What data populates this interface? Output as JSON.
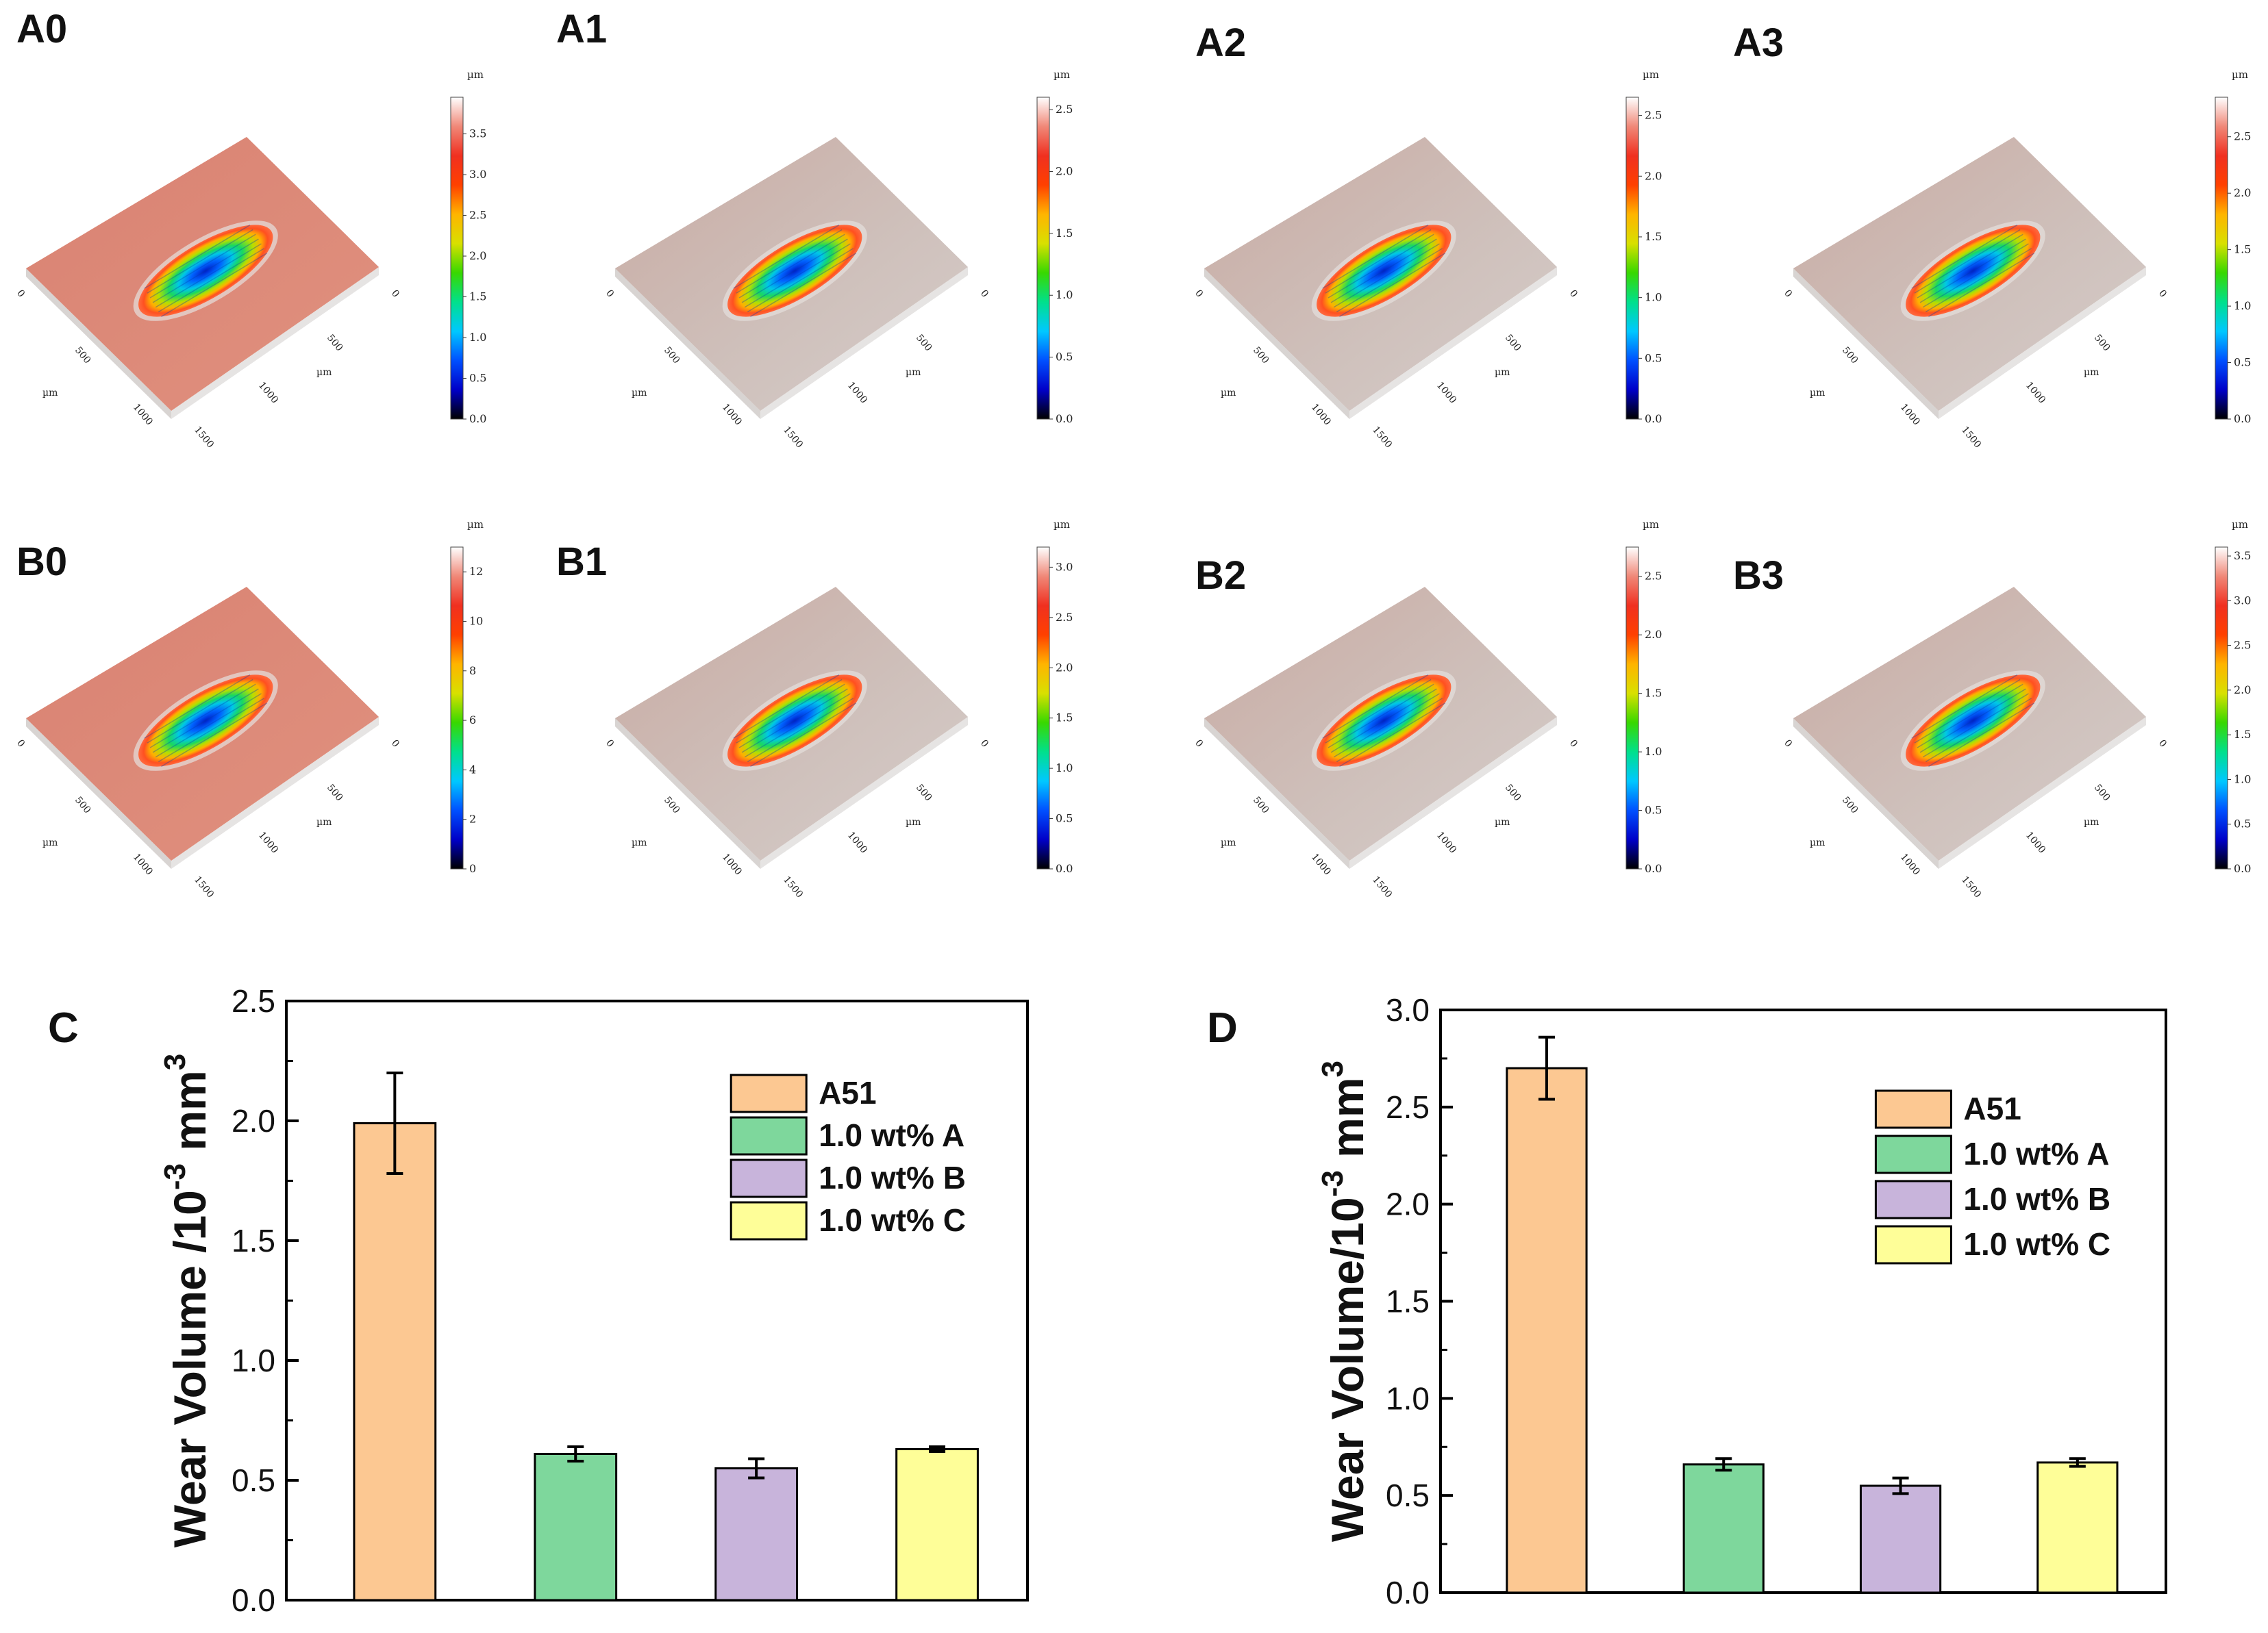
{
  "colors": {
    "surface": "#d98a78",
    "surface_grey": "#c9b7b1",
    "colorbar": [
      "#000000",
      "#0000c8",
      "#0050ff",
      "#00c8ff",
      "#00e08c",
      "#38d800",
      "#d8e000",
      "#ffb400",
      "#ff4000",
      "#f03020",
      "#f08878",
      "#ffffff"
    ],
    "A51": "#fcc892",
    "wtA": "#7ed79c",
    "wtB": "#c8b4db",
    "wtC": "#fefe98"
  },
  "panels3d": [
    {
      "label": "A0",
      "unit": "µm",
      "ticks": [
        "0.0",
        "0.5",
        "1.0",
        "1.5",
        "2.0",
        "2.5",
        "3.0",
        "3.5"
      ],
      "max": 3.95,
      "xticks": [
        "0",
        "500",
        "1000",
        "1500"
      ],
      "yticks": [
        "0",
        "500",
        "1000"
      ],
      "axis_unit": "µm",
      "surface": "red"
    },
    {
      "label": "A1",
      "unit": "µm",
      "ticks": [
        "0.0",
        "0.5",
        "1.0",
        "1.5",
        "2.0",
        "2.5"
      ],
      "max": 2.6,
      "xticks": [
        "0",
        "500",
        "1000",
        "1500"
      ],
      "yticks": [
        "0",
        "500",
        "1000"
      ],
      "axis_unit": "µm",
      "surface": "grey"
    },
    {
      "label": "A2",
      "unit": "µm",
      "ticks": [
        "0.0",
        "0.5",
        "1.0",
        "1.5",
        "2.0",
        "2.5"
      ],
      "max": 2.65,
      "xticks": [
        "0",
        "500",
        "1000",
        "1500"
      ],
      "yticks": [
        "0",
        "500",
        "1000"
      ],
      "axis_unit": "µm",
      "surface": "grey"
    },
    {
      "label": "A3",
      "unit": "µm",
      "ticks": [
        "0.0",
        "0.5",
        "1.0",
        "1.5",
        "2.0",
        "2.5"
      ],
      "max": 2.85,
      "xticks": [
        "0",
        "500",
        "1000",
        "1500"
      ],
      "yticks": [
        "0",
        "500",
        "1000"
      ],
      "axis_unit": "µm",
      "surface": "grey"
    },
    {
      "label": "B0",
      "unit": "µm",
      "ticks": [
        "0",
        "2",
        "4",
        "6",
        "8",
        "10",
        "12"
      ],
      "max": 13,
      "xticks": [
        "0",
        "500",
        "1000",
        "1500"
      ],
      "yticks": [
        "0",
        "500",
        "1000"
      ],
      "axis_unit": "µm",
      "surface": "red"
    },
    {
      "label": "B1",
      "unit": "µm",
      "ticks": [
        "0.0",
        "0.5",
        "1.0",
        "1.5",
        "2.0",
        "2.5",
        "3.0"
      ],
      "max": 3.2,
      "xticks": [
        "0",
        "500",
        "1000",
        "1500"
      ],
      "yticks": [
        "0",
        "500",
        "1000"
      ],
      "axis_unit": "µm",
      "surface": "grey"
    },
    {
      "label": "B2",
      "unit": "µm",
      "ticks": [
        "0.0",
        "0.5",
        "1.0",
        "1.5",
        "2.0",
        "2.5"
      ],
      "max": 2.75,
      "xticks": [
        "0",
        "500",
        "1000",
        "1500"
      ],
      "yticks": [
        "0",
        "500",
        "1000"
      ],
      "axis_unit": "µm",
      "surface": "grey"
    },
    {
      "label": "B3",
      "unit": "µm",
      "ticks": [
        "0.0",
        "0.5",
        "1.0",
        "1.5",
        "2.0",
        "2.5",
        "3.0",
        "3.5"
      ],
      "max": 3.6,
      "xticks": [
        "0",
        "500",
        "1000",
        "1500"
      ],
      "yticks": [
        "0",
        "500",
        "1000"
      ],
      "axis_unit": "µm",
      "surface": "grey"
    }
  ],
  "chart_data": [
    {
      "type": "bar",
      "panel_label": "C",
      "title": "",
      "xlabel": "",
      "ylabel": "Wear Volume /10",
      "ylabel_sup": "-3",
      "ylabel_unit": " mm",
      "ylabel_unit_sup": "3",
      "ylim": [
        0,
        2.5
      ],
      "yticks": [
        "0.0",
        "0.5",
        "1.0",
        "1.5",
        "2.0",
        "2.5"
      ],
      "categories": [
        "A51",
        "1.0 wt% A",
        "1.0 wt% B",
        "1.0 wt% C"
      ],
      "values": [
        1.99,
        0.61,
        0.55,
        0.63
      ],
      "errors": [
        0.21,
        0.03,
        0.04,
        0.01
      ],
      "legend": [
        "A51",
        "1.0 wt% A",
        "1.0 wt% B",
        "1.0 wt% C"
      ],
      "legend_position": "top-right"
    },
    {
      "type": "bar",
      "panel_label": "D",
      "title": "",
      "xlabel": "",
      "ylabel": "Wear Volume/10",
      "ylabel_sup": "-3",
      "ylabel_unit": " mm",
      "ylabel_unit_sup": "3",
      "ylim": [
        0,
        3.0
      ],
      "yticks": [
        "0.0",
        "0.5",
        "1.0",
        "1.5",
        "2.0",
        "2.5",
        "3.0"
      ],
      "categories": [
        "A51",
        "1.0 wt% A",
        "1.0 wt% B",
        "1.0 wt% C"
      ],
      "values": [
        2.7,
        0.66,
        0.55,
        0.67
      ],
      "errors": [
        0.16,
        0.03,
        0.04,
        0.02
      ],
      "legend": [
        "A51",
        "1.0 wt% A",
        "1.0 wt% B",
        "1.0 wt% C"
      ],
      "legend_position": "top-right"
    }
  ]
}
